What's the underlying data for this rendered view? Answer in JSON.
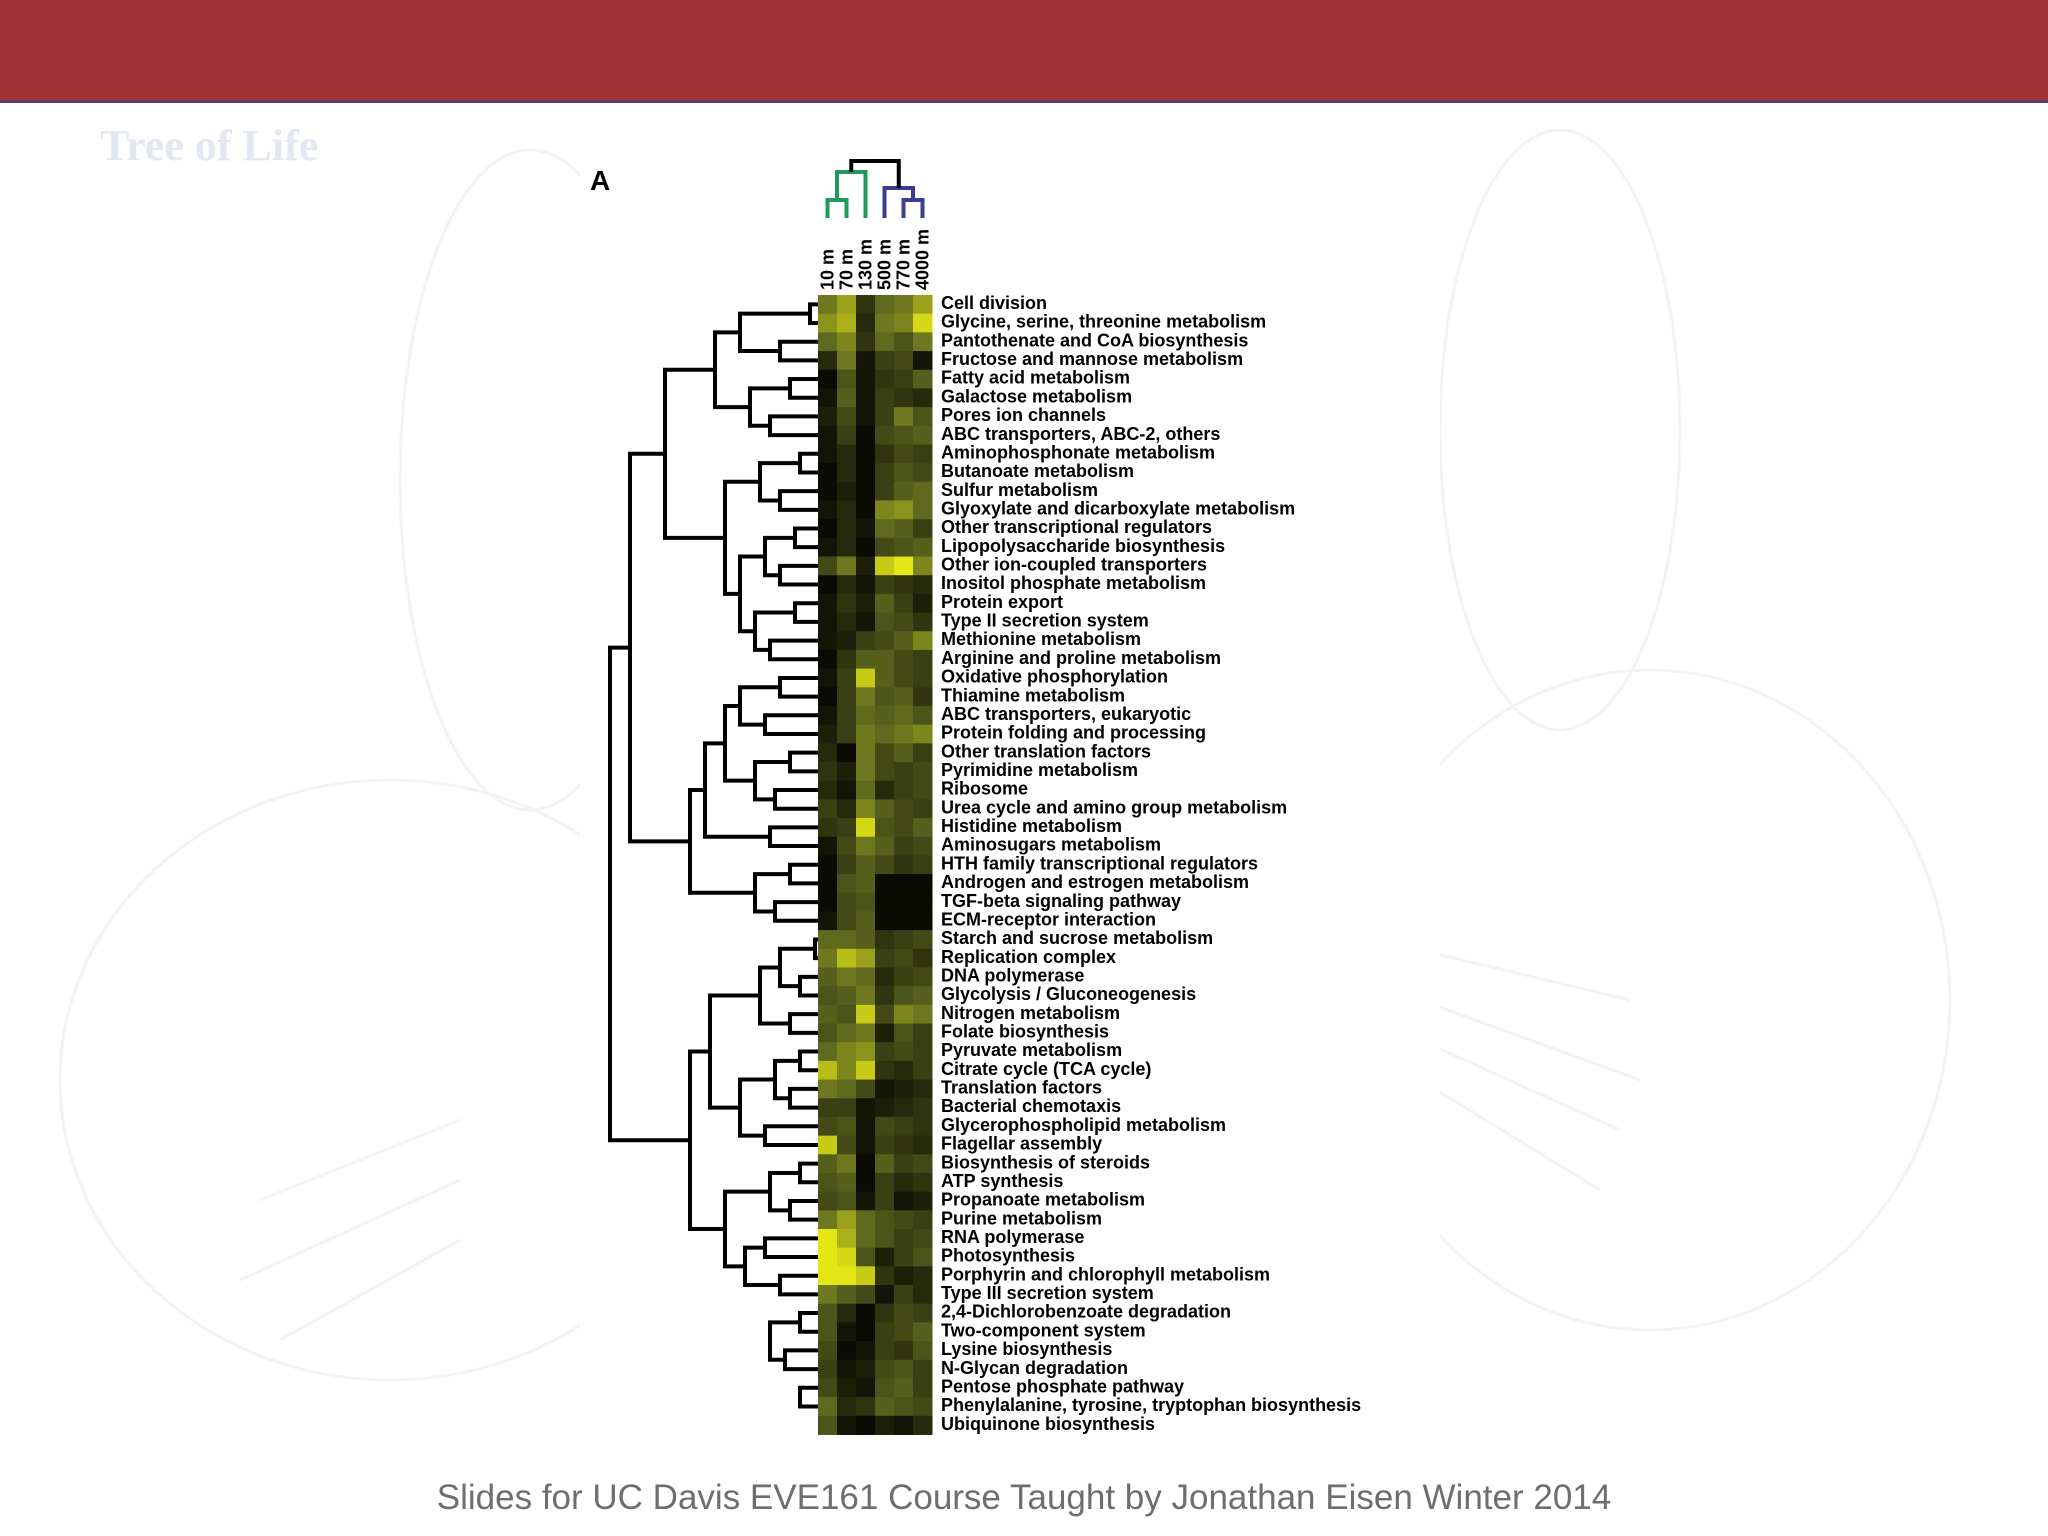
{
  "slide": {
    "footer": "Slides for UC Davis EVE161 Course Taught by Jonathan Eisen Winter 2014",
    "background_watermark_title": "Tree of Life",
    "colors": {
      "header": "#9e3236",
      "header_border": "#3a3f8f",
      "depth_cluster_shallow": "#1f9a5a",
      "depth_cluster_deep": "#3b3e8f"
    }
  },
  "figure": {
    "panel_label": "A",
    "columns": [
      "10 m",
      "70 m",
      "130 m",
      "500 m",
      "770 m",
      "4000 m"
    ],
    "column_tree": "((10 m,70 m),130 m),(500 m,(770 m,4000 m))",
    "color_scale": {
      "low": "#000000",
      "mid": "#5f6a1f",
      "high": "#f4f414"
    },
    "rows": [
      {
        "label": "Cell division",
        "values": [
          0.55,
          0.7,
          0.25,
          0.5,
          0.55,
          0.7
        ]
      },
      {
        "label": "Glycine, serine, threonine metabolism",
        "values": [
          0.65,
          0.75,
          0.2,
          0.55,
          0.6,
          0.9
        ]
      },
      {
        "label": "Pantothenate and CoA biosynthesis",
        "values": [
          0.5,
          0.6,
          0.25,
          0.5,
          0.4,
          0.55
        ]
      },
      {
        "label": "Fructose and mannose metabolism",
        "values": [
          0.2,
          0.55,
          0.1,
          0.3,
          0.35,
          0.1
        ]
      },
      {
        "label": "Fatty acid metabolism",
        "values": [
          0.05,
          0.4,
          0.1,
          0.25,
          0.3,
          0.45
        ]
      },
      {
        "label": "Galactose metabolism",
        "values": [
          0.1,
          0.45,
          0.1,
          0.3,
          0.25,
          0.2
        ]
      },
      {
        "label": "Pores ion channels",
        "values": [
          0.15,
          0.35,
          0.1,
          0.3,
          0.55,
          0.4
        ]
      },
      {
        "label": "ABC transporters, ABC-2, others",
        "values": [
          0.1,
          0.3,
          0.05,
          0.35,
          0.4,
          0.45
        ]
      },
      {
        "label": "Aminophosphonate metabolism",
        "values": [
          0.1,
          0.2,
          0.05,
          0.25,
          0.35,
          0.3
        ]
      },
      {
        "label": "Butanoate metabolism",
        "values": [
          0.05,
          0.2,
          0.05,
          0.3,
          0.4,
          0.35
        ]
      },
      {
        "label": "Sulfur metabolism",
        "values": [
          0.05,
          0.15,
          0.05,
          0.3,
          0.45,
          0.5
        ]
      },
      {
        "label": "Glyoxylate and dicarboxylate metabolism",
        "values": [
          0.1,
          0.2,
          0.05,
          0.6,
          0.65,
          0.5
        ]
      },
      {
        "label": "Other transcriptional regulators",
        "values": [
          0.05,
          0.2,
          0.1,
          0.5,
          0.45,
          0.3
        ]
      },
      {
        "label": "Lipopolysaccharide biosynthesis",
        "values": [
          0.1,
          0.2,
          0.05,
          0.35,
          0.4,
          0.45
        ]
      },
      {
        "label": "Other ion-coupled transporters",
        "values": [
          0.35,
          0.55,
          0.15,
          0.85,
          0.95,
          0.6
        ]
      },
      {
        "label": "Inositol phosphate metabolism",
        "values": [
          0.05,
          0.2,
          0.1,
          0.3,
          0.25,
          0.2
        ]
      },
      {
        "label": "Protein export",
        "values": [
          0.1,
          0.25,
          0.15,
          0.45,
          0.3,
          0.15
        ]
      },
      {
        "label": "Type II secretion system",
        "values": [
          0.1,
          0.2,
          0.1,
          0.4,
          0.35,
          0.25
        ]
      },
      {
        "label": "Methionine metabolism",
        "values": [
          0.1,
          0.15,
          0.3,
          0.35,
          0.45,
          0.6
        ]
      },
      {
        "label": "Arginine and proline metabolism",
        "values": [
          0.05,
          0.25,
          0.45,
          0.45,
          0.35,
          0.3
        ]
      },
      {
        "label": "Oxidative phosphorylation",
        "values": [
          0.1,
          0.3,
          0.85,
          0.45,
          0.35,
          0.3
        ]
      },
      {
        "label": "Thiamine metabolism",
        "values": [
          0.05,
          0.3,
          0.55,
          0.4,
          0.45,
          0.25
        ]
      },
      {
        "label": "ABC transporters, eukaryotic",
        "values": [
          0.1,
          0.3,
          0.5,
          0.45,
          0.5,
          0.4
        ]
      },
      {
        "label": "Protein folding and processing",
        "values": [
          0.15,
          0.3,
          0.55,
          0.5,
          0.55,
          0.6
        ]
      },
      {
        "label": "Other translation factors",
        "values": [
          0.2,
          0.05,
          0.55,
          0.35,
          0.45,
          0.3
        ]
      },
      {
        "label": "Pyrimidine metabolism",
        "values": [
          0.25,
          0.15,
          0.55,
          0.35,
          0.3,
          0.35
        ]
      },
      {
        "label": "Ribosome",
        "values": [
          0.2,
          0.1,
          0.5,
          0.2,
          0.3,
          0.35
        ]
      },
      {
        "label": "Urea cycle and amino group metabolism",
        "values": [
          0.3,
          0.2,
          0.6,
          0.45,
          0.35,
          0.3
        ]
      },
      {
        "label": "Histidine metabolism",
        "values": [
          0.25,
          0.3,
          0.9,
          0.4,
          0.35,
          0.45
        ]
      },
      {
        "label": "Aminosugars metabolism",
        "values": [
          0.1,
          0.35,
          0.55,
          0.45,
          0.3,
          0.35
        ]
      },
      {
        "label": "HTH family transcriptional regulators",
        "values": [
          0.05,
          0.3,
          0.45,
          0.35,
          0.25,
          0.3
        ]
      },
      {
        "label": "Androgen and estrogen metabolism",
        "values": [
          0.05,
          0.4,
          0.45,
          0.05,
          0.05,
          0.05
        ]
      },
      {
        "label": "TGF-beta signaling pathway",
        "values": [
          0.05,
          0.35,
          0.4,
          0.05,
          0.05,
          0.05
        ]
      },
      {
        "label": "ECM-receptor interaction",
        "values": [
          0.1,
          0.35,
          0.45,
          0.05,
          0.05,
          0.05
        ]
      },
      {
        "label": "Starch and sucrose metabolism",
        "values": [
          0.5,
          0.5,
          0.45,
          0.25,
          0.3,
          0.35
        ]
      },
      {
        "label": "Replication complex",
        "values": [
          0.55,
          0.8,
          0.7,
          0.3,
          0.35,
          0.25
        ]
      },
      {
        "label": "DNA polymerase",
        "values": [
          0.45,
          0.55,
          0.5,
          0.2,
          0.3,
          0.35
        ]
      },
      {
        "label": "Glycolysis / Gluconeogenesis",
        "values": [
          0.4,
          0.45,
          0.55,
          0.25,
          0.4,
          0.45
        ]
      },
      {
        "label": "Nitrogen metabolism",
        "values": [
          0.45,
          0.4,
          0.85,
          0.35,
          0.6,
          0.55
        ]
      },
      {
        "label": "Folate biosynthesis",
        "values": [
          0.4,
          0.5,
          0.55,
          0.15,
          0.4,
          0.3
        ]
      },
      {
        "label": "Pyruvate metabolism",
        "values": [
          0.5,
          0.6,
          0.65,
          0.3,
          0.35,
          0.3
        ]
      },
      {
        "label": "Citrate cycle (TCA cycle)",
        "values": [
          0.8,
          0.6,
          0.85,
          0.25,
          0.2,
          0.3
        ]
      },
      {
        "label": "Translation factors",
        "values": [
          0.55,
          0.5,
          0.35,
          0.1,
          0.15,
          0.2
        ]
      },
      {
        "label": "Bacterial chemotaxis",
        "values": [
          0.3,
          0.3,
          0.1,
          0.15,
          0.2,
          0.25
        ]
      },
      {
        "label": "Glycerophospholipid metabolism",
        "values": [
          0.35,
          0.4,
          0.1,
          0.35,
          0.3,
          0.25
        ]
      },
      {
        "label": "Flagellar assembly",
        "values": [
          0.85,
          0.35,
          0.1,
          0.3,
          0.25,
          0.2
        ]
      },
      {
        "label": "Biosynthesis of steroids",
        "values": [
          0.45,
          0.55,
          0.05,
          0.45,
          0.3,
          0.35
        ]
      },
      {
        "label": "ATP synthesis",
        "values": [
          0.4,
          0.45,
          0.05,
          0.3,
          0.2,
          0.25
        ]
      },
      {
        "label": "Propanoate metabolism",
        "values": [
          0.35,
          0.4,
          0.1,
          0.3,
          0.1,
          0.15
        ]
      },
      {
        "label": "Purine metabolism",
        "values": [
          0.55,
          0.7,
          0.5,
          0.4,
          0.35,
          0.3
        ]
      },
      {
        "label": "RNA polymerase",
        "values": [
          0.95,
          0.75,
          0.5,
          0.4,
          0.3,
          0.35
        ]
      },
      {
        "label": "Photosynthesis",
        "values": [
          0.95,
          0.9,
          0.4,
          0.15,
          0.3,
          0.4
        ]
      },
      {
        "label": "Porphyrin and chlorophyll metabolism",
        "values": [
          0.95,
          0.95,
          0.85,
          0.25,
          0.15,
          0.2
        ]
      },
      {
        "label": "Type III secretion system",
        "values": [
          0.55,
          0.45,
          0.35,
          0.1,
          0.3,
          0.2
        ]
      },
      {
        "label": "2,4-Dichlorobenzoate degradation",
        "values": [
          0.4,
          0.2,
          0.05,
          0.25,
          0.35,
          0.3
        ]
      },
      {
        "label": "Two-component system",
        "values": [
          0.4,
          0.1,
          0.05,
          0.3,
          0.35,
          0.45
        ]
      },
      {
        "label": "Lysine biosynthesis",
        "values": [
          0.35,
          0.05,
          0.1,
          0.3,
          0.25,
          0.4
        ]
      },
      {
        "label": "N-Glycan degradation",
        "values": [
          0.3,
          0.1,
          0.15,
          0.35,
          0.4,
          0.3
        ]
      },
      {
        "label": "Pentose phosphate pathway",
        "values": [
          0.35,
          0.15,
          0.1,
          0.4,
          0.45,
          0.3
        ]
      },
      {
        "label": "Phenylalanine, tyrosine, tryptophan biosynthesis",
        "values": [
          0.5,
          0.2,
          0.25,
          0.45,
          0.4,
          0.35
        ]
      },
      {
        "label": "Ubiquinone biosynthesis",
        "values": [
          0.4,
          0.1,
          0.05,
          0.15,
          0.1,
          0.2
        ]
      }
    ]
  }
}
